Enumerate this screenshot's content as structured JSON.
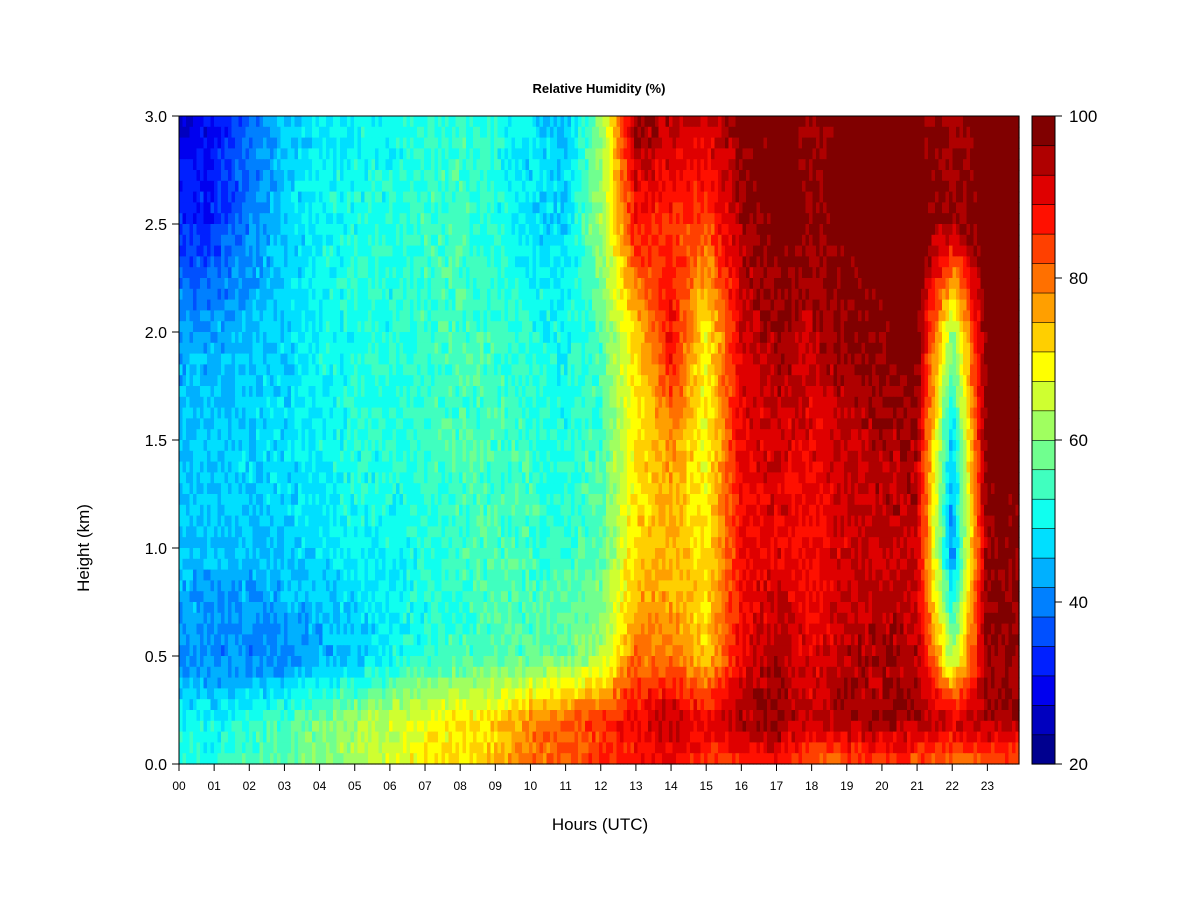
{
  "chart_data": {
    "type": "heatmap",
    "title": "Relative Humidity (%)",
    "xlabel": "Hours (UTC)",
    "ylabel": "Height (km)",
    "xlim": [
      0,
      23.9
    ],
    "ylim": [
      0.0,
      3.0
    ],
    "x_ticks": [
      "00",
      "01",
      "02",
      "03",
      "04",
      "05",
      "06",
      "07",
      "08",
      "09",
      "10",
      "11",
      "12",
      "13",
      "14",
      "15",
      "16",
      "17",
      "18",
      "19",
      "20",
      "21",
      "22",
      "23"
    ],
    "y_ticks": [
      "0.0",
      "0.5",
      "1.0",
      "1.5",
      "2.0",
      "2.5",
      "3.0"
    ],
    "colorbar": {
      "range": [
        20,
        100
      ],
      "ticks": [
        "20",
        "40",
        "60",
        "80",
        "100"
      ],
      "levels": [
        20,
        25,
        30,
        35,
        40,
        45,
        50,
        55,
        60,
        65,
        70,
        75,
        80,
        85,
        90,
        95,
        100
      ],
      "colors": [
        "#00008F",
        "#0000BF",
        "#0000EF",
        "#0020FF",
        "#0050FF",
        "#0080FF",
        "#00B0FF",
        "#00DFFF",
        "#10FFEF",
        "#40FFBF",
        "#70FF8F",
        "#A0FF60",
        "#CFFF30",
        "#FFFF00",
        "#FFCF00",
        "#FF9F00",
        "#FF7000",
        "#FF4000",
        "#FF1000",
        "#DF0000",
        "#AF0000",
        "#800000"
      ],
      "color_placement": "right"
    },
    "grid": false,
    "description_rows": [
      {
        "height_km": 3.0,
        "rh": [
          27,
          30,
          38,
          45,
          48,
          50,
          50,
          52,
          54,
          52,
          48,
          45,
          60,
          97,
          95,
          92,
          98,
          100,
          97,
          100,
          100,
          100,
          95,
          100
        ]
      },
      {
        "height_km": 2.5,
        "rh": [
          33,
          33,
          40,
          46,
          50,
          52,
          52,
          54,
          55,
          52,
          48,
          47,
          62,
          88,
          85,
          83,
          95,
          100,
          97,
          100,
          100,
          100,
          95,
          100
        ]
      },
      {
        "height_km": 2.0,
        "rh": [
          43,
          43,
          45,
          47,
          50,
          52,
          52,
          54,
          55,
          54,
          52,
          50,
          55,
          72,
          90,
          68,
          92,
          96,
          94,
          97,
          98,
          100,
          60,
          100
        ]
      },
      {
        "height_km": 1.5,
        "rh": [
          46,
          46,
          47,
          48,
          50,
          52,
          52,
          54,
          55,
          55,
          54,
          52,
          55,
          70,
          78,
          68,
          90,
          92,
          90,
          93,
          95,
          95,
          45,
          100
        ]
      },
      {
        "height_km": 1.0,
        "rh": [
          45,
          45,
          45,
          46,
          48,
          50,
          50,
          52,
          54,
          55,
          54,
          53,
          56,
          72,
          74,
          70,
          88,
          90,
          88,
          92,
          93,
          93,
          40,
          98
        ]
      },
      {
        "height_km": 0.5,
        "rh": [
          42,
          40,
          40,
          40,
          43,
          45,
          50,
          52,
          54,
          55,
          56,
          58,
          62,
          80,
          80,
          72,
          90,
          95,
          90,
          94,
          95,
          95,
          62,
          96
        ]
      },
      {
        "height_km": 0.2,
        "rh": [
          50,
          50,
          52,
          55,
          58,
          62,
          65,
          68,
          70,
          72,
          78,
          82,
          85,
          90,
          95,
          90,
          95,
          98,
          92,
          96,
          96,
          96,
          92,
          96
        ]
      },
      {
        "height_km": 0.0,
        "rh": [
          52,
          52,
          55,
          58,
          60,
          62,
          66,
          70,
          72,
          74,
          80,
          82,
          84,
          86,
          88,
          85,
          85,
          88,
          80,
          82,
          84,
          82,
          80,
          82
        ]
      }
    ]
  }
}
